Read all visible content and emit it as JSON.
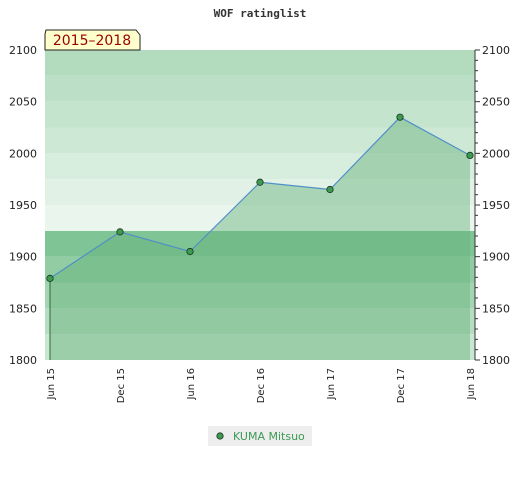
{
  "chart_data": {
    "type": "area",
    "title": "WOF ratinglist",
    "period_label": "2015–2018",
    "x": [
      "Jun 15",
      "Dec 15",
      "Jun 16",
      "Dec 16",
      "Jun 17",
      "Dec 17",
      "Jun 18"
    ],
    "series": [
      {
        "name": "KUMA Mitsuo",
        "values": [
          1879,
          1924,
          1905,
          1972,
          1965,
          2035,
          1998
        ]
      }
    ],
    "y_ticks": [
      1800,
      1850,
      1900,
      1950,
      2000,
      2050,
      2100
    ],
    "ylim": [
      1800,
      2100
    ],
    "xlabel": "",
    "ylabel": "",
    "grid": true,
    "legend_position": "bottom-center",
    "colors": {
      "area_fill": "#66b27a",
      "line": "#4f8fc8",
      "marker_fill": "#3d9b50",
      "marker_stroke": "#1a3320",
      "band_light": "#f0f8f2",
      "band_dark": "#79c18f",
      "period_bg": "#ffffcc",
      "period_text": "#990000",
      "legend_text": "#3c9a55"
    }
  }
}
